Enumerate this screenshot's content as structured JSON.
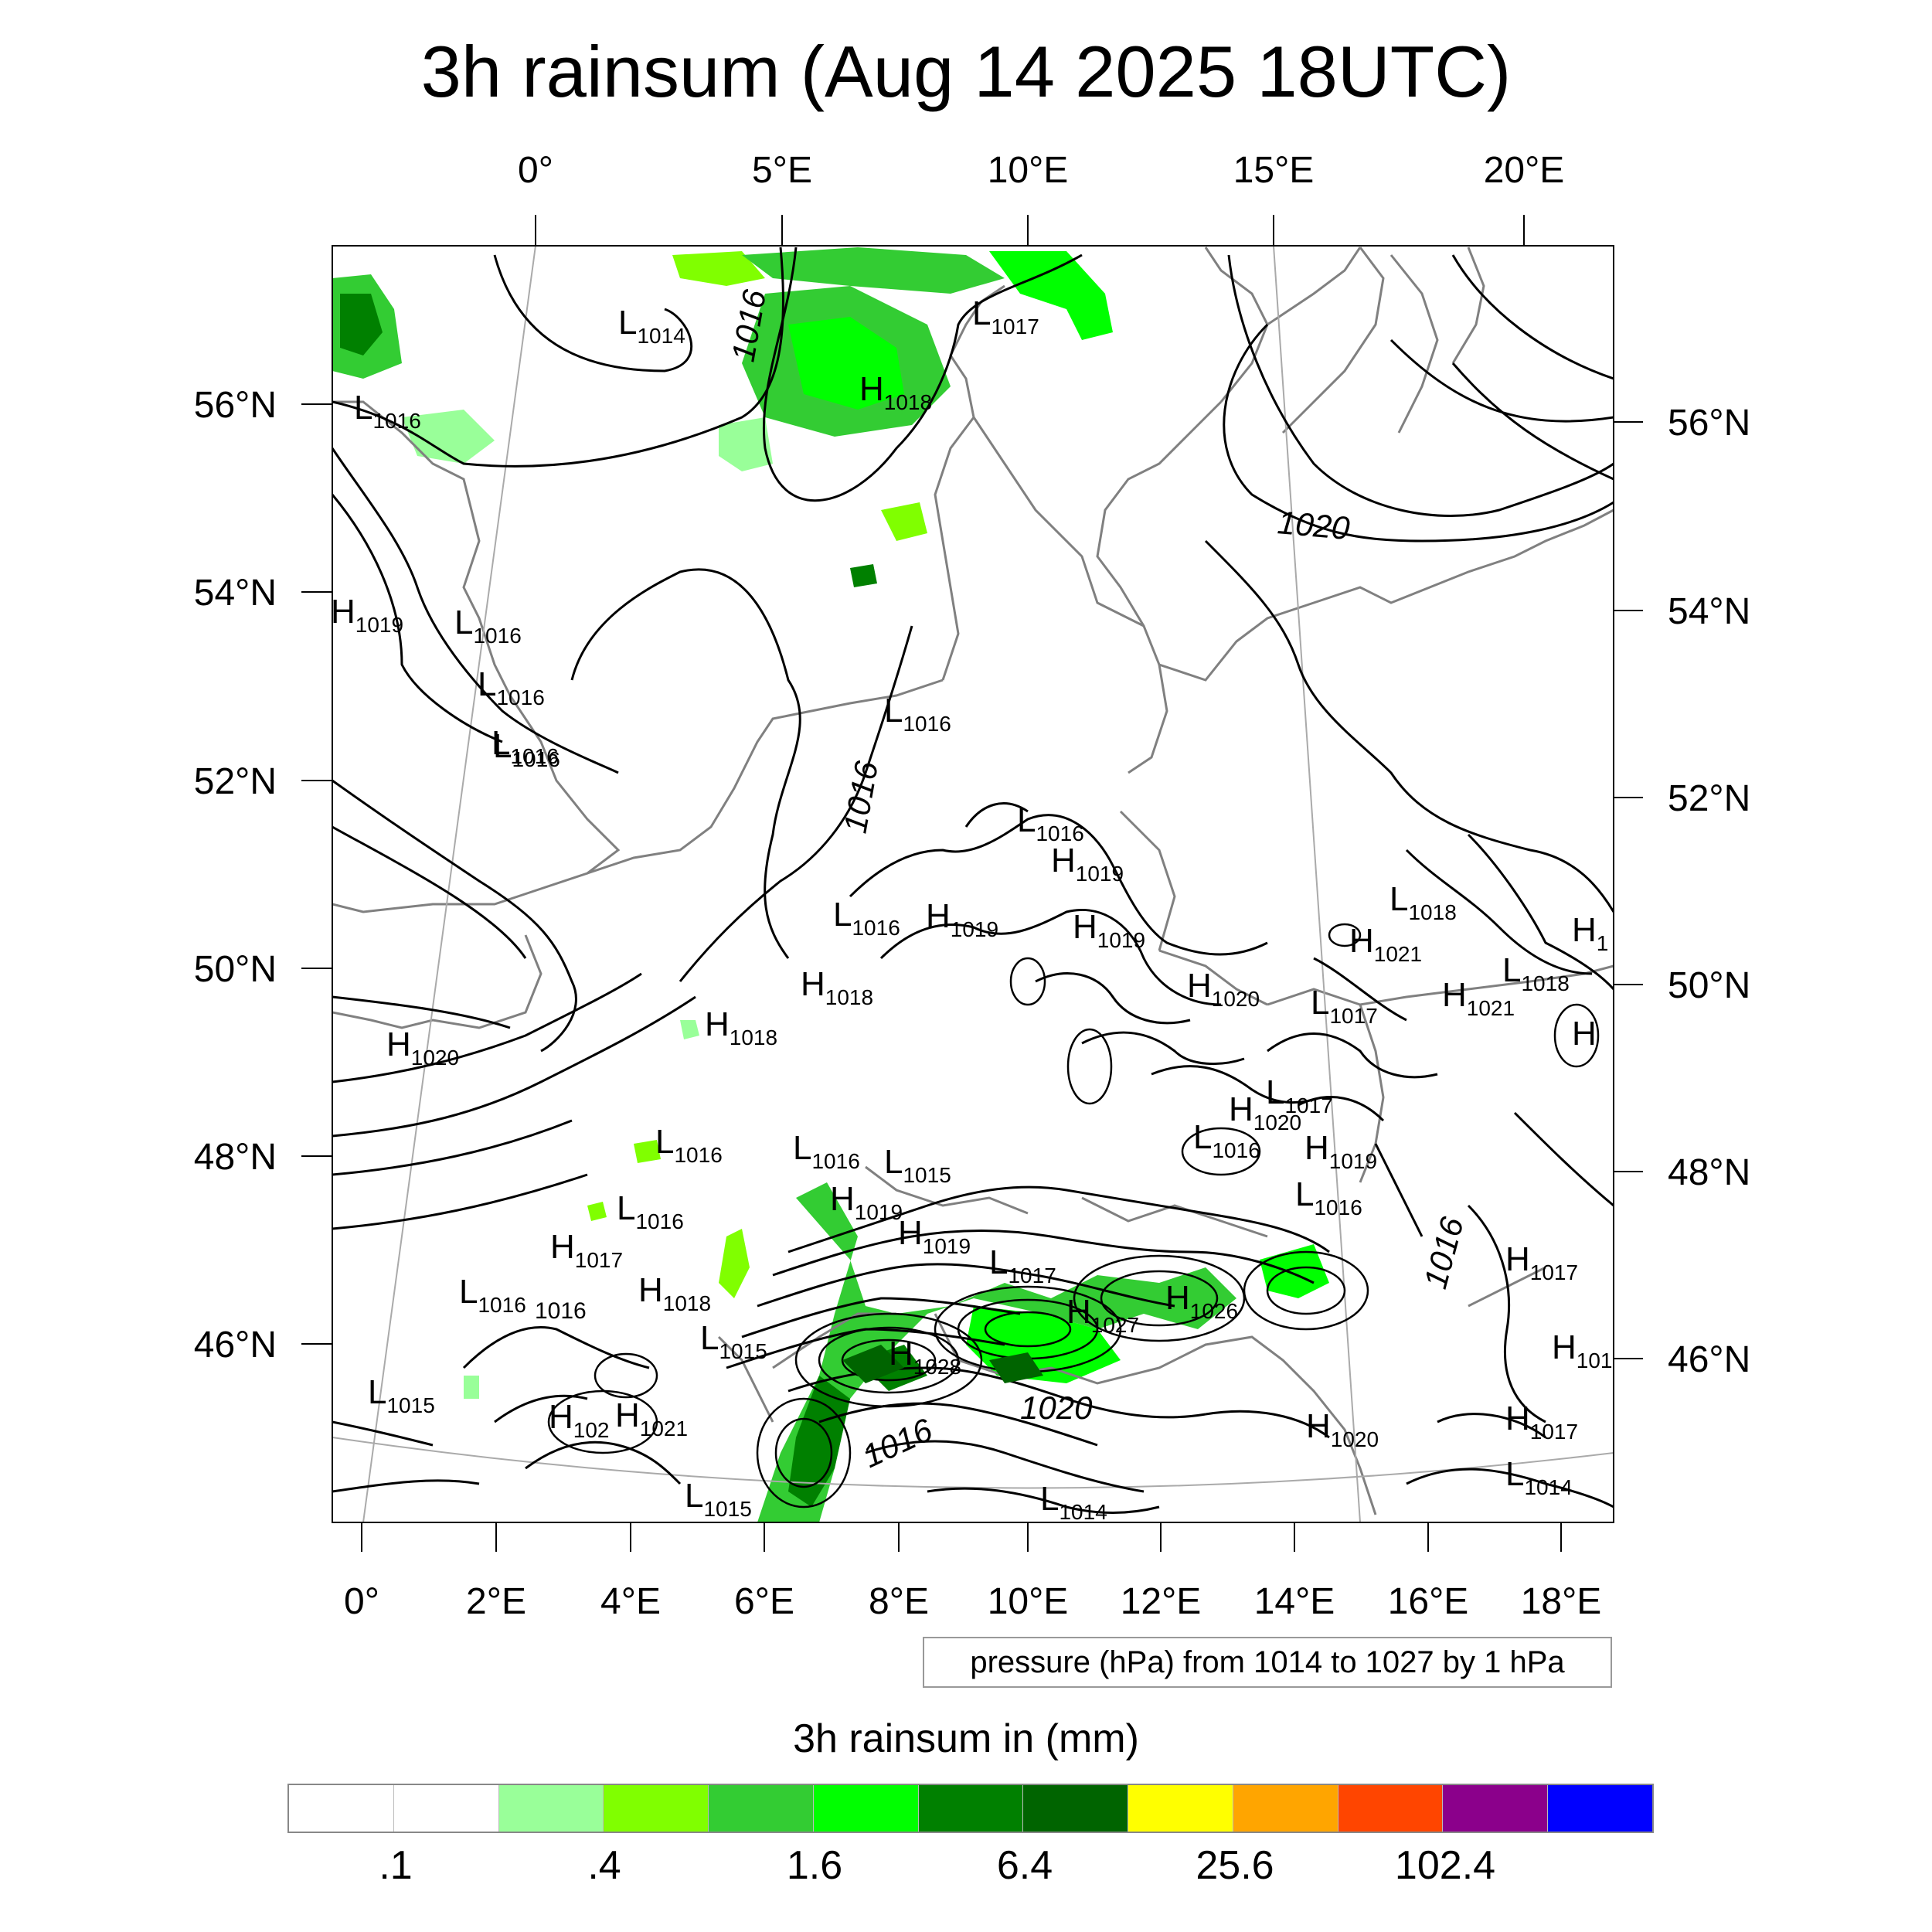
{
  "title": "3h rainsum (Aug 14 2025 18UTC)",
  "map": {
    "top_lon_labels": [
      "0°",
      "5°E",
      "10°E",
      "15°E",
      "20°E"
    ],
    "bottom_lon_labels": [
      "0°",
      "2°E",
      "4°E",
      "6°E",
      "8°E",
      "10°E",
      "12°E",
      "14°E",
      "16°E",
      "18°E"
    ],
    "left_lat_labels": [
      "56°N",
      "54°N",
      "52°N",
      "50°N",
      "48°N",
      "46°N"
    ],
    "right_lat_labels": [
      "56°N",
      "54°N",
      "52°N",
      "50°N",
      "48°N",
      "46°N"
    ],
    "contour_labels": [
      "1016",
      "1016",
      "1020",
      "1020",
      "1016",
      "1016"
    ],
    "pressure_centers": [
      {
        "t": "L",
        "v": "1014"
      },
      {
        "t": "L",
        "v": "1017"
      },
      {
        "t": "H",
        "v": "1018"
      },
      {
        "t": "L",
        "v": "1016"
      },
      {
        "t": "H",
        "v": "1019"
      },
      {
        "t": "L",
        "v": "1016"
      },
      {
        "t": "L",
        "v": "1016"
      },
      {
        "t": "L",
        "v": "1016"
      },
      {
        "t": "L",
        "v": "1016"
      },
      {
        "t": "L",
        "v": "1016"
      },
      {
        "t": "H",
        "v": "1019"
      },
      {
        "t": "L",
        "v": "1016"
      },
      {
        "t": "H",
        "v": "1019"
      },
      {
        "t": "L",
        "v": "1016"
      },
      {
        "t": "H",
        "v": "1019"
      },
      {
        "t": "L",
        "v": "1018"
      },
      {
        "t": "H",
        "v": "1021"
      },
      {
        "t": "H",
        "v": "1"
      },
      {
        "t": "H",
        "v": "1018"
      },
      {
        "t": "H",
        "v": "1020"
      },
      {
        "t": "L",
        "v": "1017"
      },
      {
        "t": "H",
        "v": "1021"
      },
      {
        "t": "L",
        "v": "1018"
      },
      {
        "t": "H",
        "v": "1018"
      },
      {
        "t": "H",
        "v": "1020"
      },
      {
        "t": "H",
        "v": ""
      },
      {
        "t": "L",
        "v": "1017"
      },
      {
        "t": "H",
        "v": "1020"
      },
      {
        "t": "L",
        "v": "1016"
      },
      {
        "t": "H",
        "v": "1019"
      },
      {
        "t": "L",
        "v": "1016"
      },
      {
        "t": "L",
        "v": "1016"
      },
      {
        "t": "L",
        "v": "1015"
      },
      {
        "t": "H",
        "v": "1019"
      },
      {
        "t": "H",
        "v": "1019"
      },
      {
        "t": "L",
        "v": "1016"
      },
      {
        "t": "L",
        "v": "1016"
      },
      {
        "t": "H",
        "v": "1017"
      },
      {
        "t": "L",
        "v": "1017"
      },
      {
        "t": "H",
        "v": "1018"
      },
      {
        "t": "L",
        "v": "1016"
      },
      {
        "t": "H",
        "v": "1026"
      },
      {
        "t": "H",
        "v": "1027"
      },
      {
        "t": "H",
        "v": "1017"
      },
      {
        "t": "L",
        "v": "1015"
      },
      {
        "t": "H",
        "v": "1028"
      },
      {
        "t": "H",
        "v": "101"
      },
      {
        "t": "L",
        "v": "1015"
      },
      {
        "t": "H",
        "v": "102"
      },
      {
        "t": "H",
        "v": "1021"
      },
      {
        "t": "H",
        "v": "1017"
      },
      {
        "t": "H",
        "v": "1020"
      },
      {
        "t": "L",
        "v": "1014"
      },
      {
        "t": "L",
        "v": "1015"
      },
      {
        "t": "L",
        "v": "1014"
      }
    ],
    "extra_label": "1016"
  },
  "info_box": "pressure (hPa) from 1014 to 1027 by 1 hPa",
  "colorbar": {
    "title": "3h rainsum in (mm)",
    "colors": [
      "#ffffff",
      "#ffffff",
      "#99ff99",
      "#80ff00",
      "#33cc33",
      "#00ff00",
      "#008000",
      "#006400",
      "#ffff00",
      "#ffa500",
      "#ff4500",
      "#8b008b",
      "#0000ff"
    ],
    "tick_labels": [
      ".1",
      ".4",
      "1.6",
      "6.4",
      "25.6",
      "102.4"
    ]
  },
  "rain_color_light": "#99ff99",
  "rain_color_medium": "#33cc33",
  "rain_color_dark": "#008000",
  "coast_color": "#808080",
  "isobar_color": "#000000"
}
